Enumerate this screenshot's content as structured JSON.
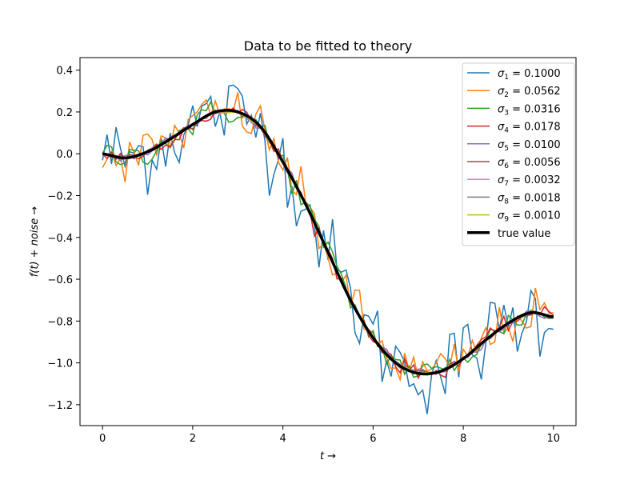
{
  "chart_data": {
    "type": "line",
    "title": "Data to be fitted to theory",
    "xlabel": "t →",
    "ylabel": "f(t) + noise →",
    "xlim": [
      -0.5,
      10.5
    ],
    "ylim": [
      -1.3,
      0.46
    ],
    "xticks": [
      0,
      2,
      4,
      6,
      8,
      10
    ],
    "xtick_labels": [
      "0",
      "2",
      "4",
      "6",
      "8",
      "10"
    ],
    "yticks": [
      0.4,
      0.2,
      0.0,
      -0.2,
      -0.4,
      -0.6,
      -0.8,
      -1.0,
      -1.2
    ],
    "ytick_labels": [
      "0.4",
      "0.2",
      "0.0",
      "−0.2",
      "−0.4",
      "−0.6",
      "−0.8",
      "−1.0",
      "−1.2"
    ],
    "grid": false,
    "legend_position": "top-right",
    "true_value": {
      "label": "true value",
      "color": "#000000",
      "x": [
        0,
        0.5,
        1,
        1.5,
        2,
        2.5,
        3,
        3.5,
        4,
        4.5,
        5,
        5.5,
        6,
        6.5,
        7,
        7.5,
        8,
        8.5,
        9,
        9.5,
        10
      ],
      "y": [
        0.0,
        -0.02,
        0.01,
        0.07,
        0.14,
        0.2,
        0.2,
        0.13,
        -0.04,
        -0.24,
        -0.47,
        -0.7,
        -0.88,
        -1.0,
        -1.05,
        -1.04,
        -0.98,
        -0.89,
        -0.81,
        -0.76,
        -0.78
      ]
    },
    "series": [
      {
        "symbol": "σ",
        "sub": "1",
        "value": "= 0.1000",
        "color": "#1f77b4",
        "sigma": 0.1
      },
      {
        "symbol": "σ",
        "sub": "2",
        "value": "= 0.0562",
        "color": "#ff7f0e",
        "sigma": 0.0562
      },
      {
        "symbol": "σ",
        "sub": "3",
        "value": "= 0.0316",
        "color": "#2ca02c",
        "sigma": 0.0316
      },
      {
        "symbol": "σ",
        "sub": "4",
        "value": "= 0.0178",
        "color": "#d62728",
        "sigma": 0.0178
      },
      {
        "symbol": "σ",
        "sub": "5",
        "value": "= 0.0100",
        "color": "#9467bd",
        "sigma": 0.01
      },
      {
        "symbol": "σ",
        "sub": "6",
        "value": "= 0.0056",
        "color": "#8c564b",
        "sigma": 0.0056
      },
      {
        "symbol": "σ",
        "sub": "7",
        "value": "= 0.0032",
        "color": "#e377c2",
        "sigma": 0.0032
      },
      {
        "symbol": "σ",
        "sub": "8",
        "value": "= 0.0018",
        "color": "#7f7f7f",
        "sigma": 0.0018
      },
      {
        "symbol": "σ",
        "sub": "9",
        "value": "= 0.0010",
        "color": "#bcbd22",
        "sigma": 0.001
      }
    ]
  }
}
